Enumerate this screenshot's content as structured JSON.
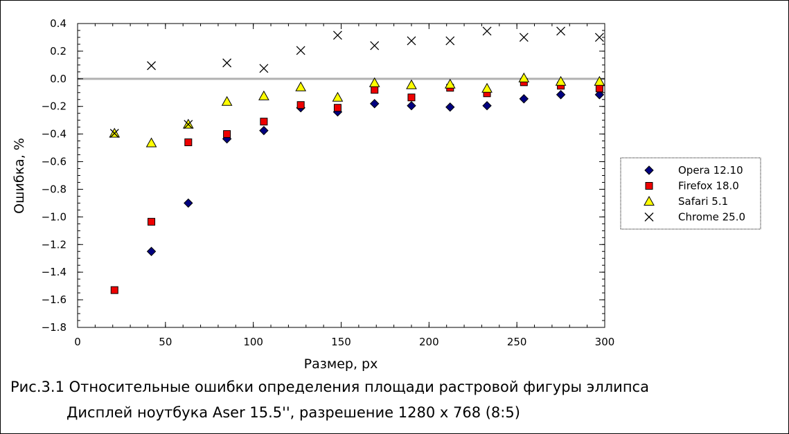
{
  "caption": {
    "line1": "Рис.3.1 Относительные ошибки определения площади растровой фигуры эллипса",
    "line2": "Дисплей ноутбука Aser 15.5'', разрешение 1280 x 768 (8:5)"
  },
  "chart_data": {
    "type": "scatter",
    "title": "",
    "xlabel": "Размер, px",
    "ylabel": "Ошибка, %",
    "xlim": [
      0,
      300
    ],
    "ylim": [
      -1.8,
      0.4
    ],
    "xticks": [
      0,
      50,
      100,
      150,
      200,
      250,
      300
    ],
    "yticks": [
      -1.8,
      -1.6,
      -1.4,
      -1.2,
      -1.0,
      -0.8,
      -0.6,
      -0.4,
      -0.2,
      0.0,
      0.2,
      0.4
    ],
    "xtick_labels": [
      "0",
      "50",
      "100",
      "150",
      "200",
      "250",
      "300"
    ],
    "ytick_labels": [
      "−1.8",
      "−1.6",
      "−1.4",
      "−1.2",
      "−1.0",
      "−0.8",
      "−0.6",
      "−0.4",
      "−0.2",
      "0.0",
      "0.2",
      "0.4"
    ],
    "reference_line_y": 0,
    "grid": false,
    "legend_position": "right",
    "series": [
      {
        "name": "Opera 12.10",
        "marker": "diamond",
        "color": "#000080",
        "x": [
          42,
          63,
          85,
          106,
          127,
          148,
          169,
          190,
          212,
          233,
          254,
          275,
          297
        ],
        "y": [
          -1.25,
          -0.9,
          -0.435,
          -0.375,
          -0.21,
          -0.24,
          -0.18,
          -0.195,
          -0.205,
          -0.195,
          -0.145,
          -0.115,
          -0.115
        ]
      },
      {
        "name": "Firefox 18.0",
        "marker": "square",
        "color": "#ee0000",
        "x": [
          21,
          42,
          63,
          85,
          106,
          127,
          148,
          169,
          190,
          212,
          233,
          254,
          275,
          297
        ],
        "y": [
          -1.53,
          -1.035,
          -0.46,
          -0.4,
          -0.31,
          -0.19,
          -0.21,
          -0.08,
          -0.135,
          -0.065,
          -0.105,
          -0.025,
          -0.05,
          -0.07
        ]
      },
      {
        "name": "Safari 5.1",
        "marker": "triangle",
        "color": "#ffff00",
        "x": [
          21,
          42,
          63,
          85,
          106,
          127,
          148,
          169,
          190,
          212,
          233,
          254,
          275,
          297
        ],
        "y": [
          -0.395,
          -0.465,
          -0.33,
          -0.165,
          -0.125,
          -0.06,
          -0.135,
          -0.03,
          -0.045,
          -0.04,
          -0.07,
          0.005,
          -0.02,
          -0.02
        ]
      },
      {
        "name": "Chrome 25.0",
        "marker": "x",
        "color": "#000000",
        "x": [
          21,
          42,
          63,
          85,
          106,
          127,
          148,
          169,
          190,
          212,
          233,
          254,
          275,
          297
        ],
        "y": [
          -0.395,
          0.095,
          -0.33,
          0.115,
          0.075,
          0.205,
          0.315,
          0.24,
          0.275,
          0.275,
          0.345,
          0.3,
          0.345,
          0.3
        ]
      }
    ]
  }
}
